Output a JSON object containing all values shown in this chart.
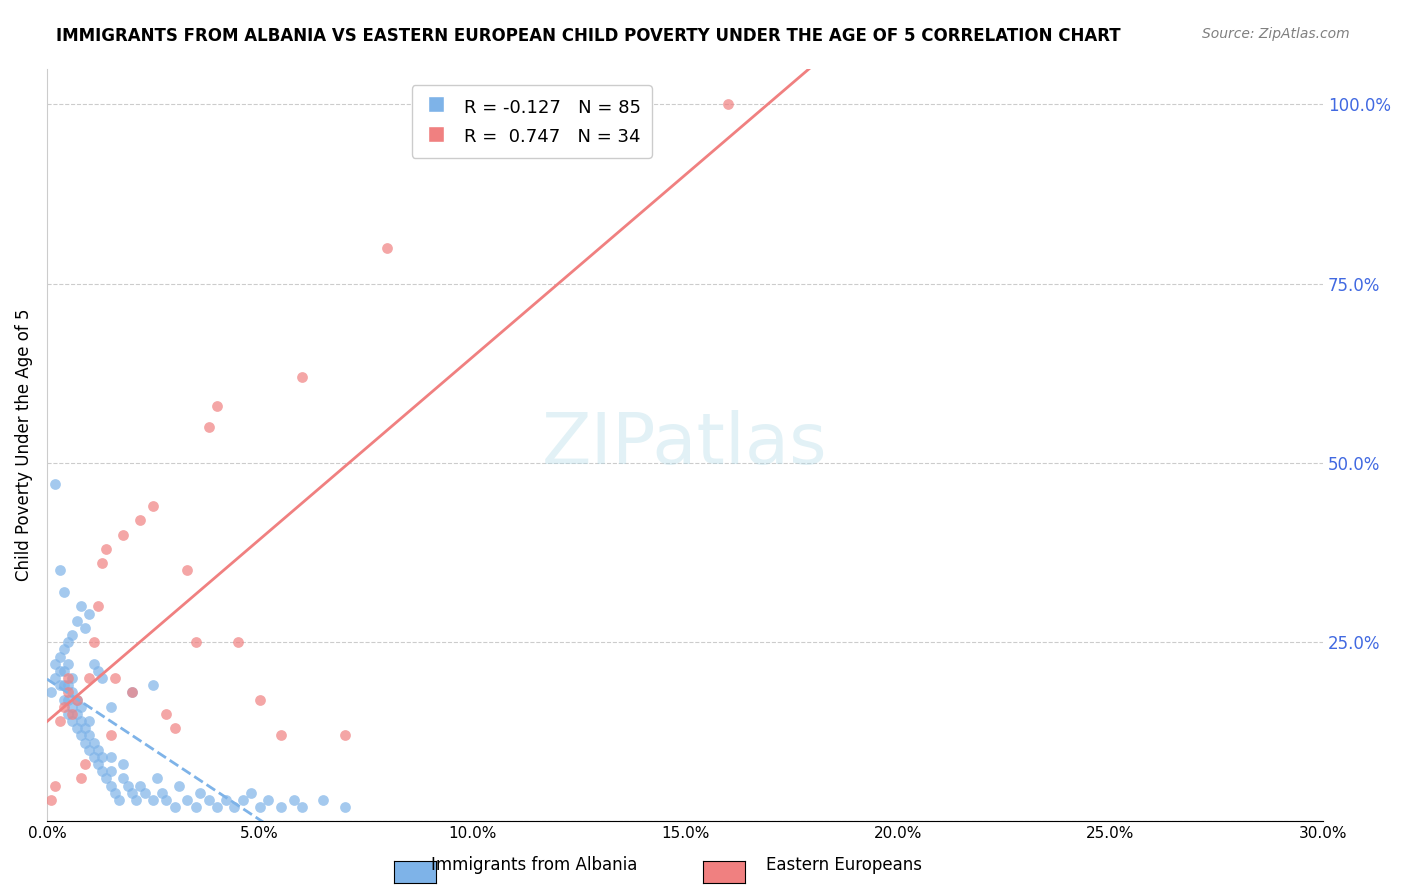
{
  "title": "IMMIGRANTS FROM ALBANIA VS EASTERN EUROPEAN CHILD POVERTY UNDER THE AGE OF 5 CORRELATION CHART",
  "source": "Source: ZipAtlas.com",
  "xlabel": "",
  "ylabel": "Child Poverty Under the Age of 5",
  "right_yticks": [
    0.0,
    0.25,
    0.5,
    0.75,
    1.0
  ],
  "right_yticklabels": [
    "",
    "25.0%",
    "50.0%",
    "75.0%",
    "100.0%"
  ],
  "xlim": [
    0.0,
    0.3
  ],
  "ylim": [
    0.0,
    1.05
  ],
  "xticklabels": [
    "0.0%",
    "5.0%",
    "10.0%",
    "15.0%",
    "20.0%",
    "25.0%",
    "30.0%"
  ],
  "xticks": [
    0.0,
    0.05,
    0.1,
    0.15,
    0.2,
    0.25,
    0.3
  ],
  "albania_color": "#7EB3E8",
  "eastern_color": "#F08080",
  "albania_R": -0.127,
  "albania_N": 85,
  "eastern_R": 0.747,
  "eastern_N": 34,
  "albania_label": "Immigrants from Albania",
  "eastern_label": "Eastern Europeans",
  "watermark": "ZIPatlas",
  "grid_color": "#cccccc",
  "right_axis_color": "#4169e1",
  "albania_points_x": [
    0.001,
    0.002,
    0.002,
    0.003,
    0.003,
    0.003,
    0.004,
    0.004,
    0.004,
    0.004,
    0.005,
    0.005,
    0.005,
    0.005,
    0.006,
    0.006,
    0.006,
    0.006,
    0.007,
    0.007,
    0.007,
    0.008,
    0.008,
    0.008,
    0.009,
    0.009,
    0.01,
    0.01,
    0.01,
    0.011,
    0.011,
    0.012,
    0.012,
    0.013,
    0.013,
    0.014,
    0.015,
    0.015,
    0.015,
    0.016,
    0.017,
    0.018,
    0.018,
    0.019,
    0.02,
    0.021,
    0.022,
    0.023,
    0.025,
    0.026,
    0.027,
    0.028,
    0.03,
    0.031,
    0.033,
    0.035,
    0.036,
    0.038,
    0.04,
    0.042,
    0.044,
    0.046,
    0.048,
    0.05,
    0.052,
    0.055,
    0.058,
    0.06,
    0.065,
    0.07,
    0.005,
    0.006,
    0.007,
    0.008,
    0.009,
    0.01,
    0.011,
    0.012,
    0.013,
    0.004,
    0.003,
    0.002,
    0.015,
    0.02,
    0.025
  ],
  "albania_points_y": [
    0.18,
    0.2,
    0.22,
    0.19,
    0.21,
    0.23,
    0.17,
    0.19,
    0.21,
    0.24,
    0.15,
    0.17,
    0.19,
    0.22,
    0.14,
    0.16,
    0.18,
    0.2,
    0.13,
    0.15,
    0.17,
    0.12,
    0.14,
    0.16,
    0.11,
    0.13,
    0.1,
    0.12,
    0.14,
    0.09,
    0.11,
    0.08,
    0.1,
    0.07,
    0.09,
    0.06,
    0.05,
    0.07,
    0.09,
    0.04,
    0.03,
    0.06,
    0.08,
    0.05,
    0.04,
    0.03,
    0.05,
    0.04,
    0.03,
    0.06,
    0.04,
    0.03,
    0.02,
    0.05,
    0.03,
    0.02,
    0.04,
    0.03,
    0.02,
    0.03,
    0.02,
    0.03,
    0.04,
    0.02,
    0.03,
    0.02,
    0.03,
    0.02,
    0.03,
    0.02,
    0.25,
    0.26,
    0.28,
    0.3,
    0.27,
    0.29,
    0.22,
    0.21,
    0.2,
    0.32,
    0.35,
    0.47,
    0.16,
    0.18,
    0.19
  ],
  "eastern_points_x": [
    0.001,
    0.002,
    0.003,
    0.004,
    0.005,
    0.005,
    0.006,
    0.007,
    0.008,
    0.009,
    0.01,
    0.011,
    0.012,
    0.013,
    0.014,
    0.015,
    0.016,
    0.018,
    0.02,
    0.022,
    0.025,
    0.028,
    0.03,
    0.033,
    0.035,
    0.038,
    0.04,
    0.045,
    0.05,
    0.055,
    0.06,
    0.07,
    0.08,
    0.16
  ],
  "eastern_points_y": [
    0.03,
    0.05,
    0.14,
    0.16,
    0.18,
    0.2,
    0.15,
    0.17,
    0.06,
    0.08,
    0.2,
    0.25,
    0.3,
    0.36,
    0.38,
    0.12,
    0.2,
    0.4,
    0.18,
    0.42,
    0.44,
    0.15,
    0.13,
    0.35,
    0.25,
    0.55,
    0.58,
    0.25,
    0.17,
    0.12,
    0.62,
    0.12,
    0.8,
    1.0
  ]
}
